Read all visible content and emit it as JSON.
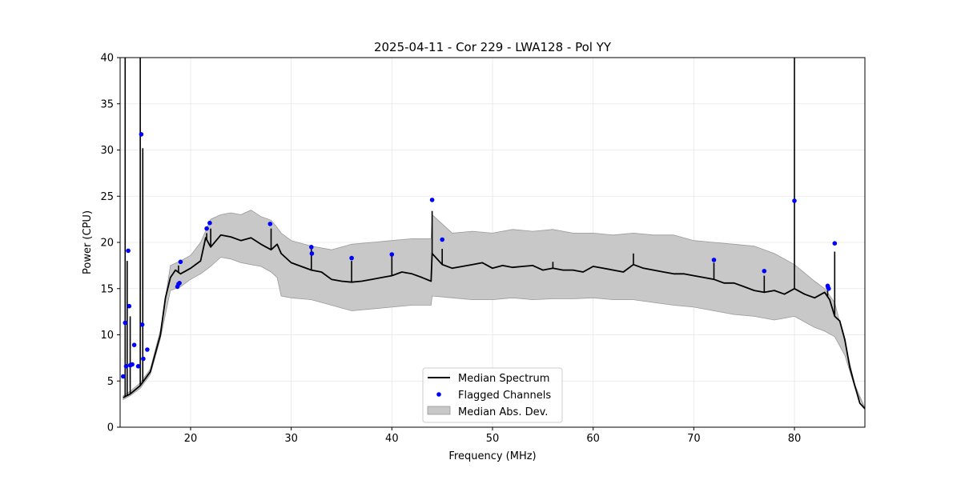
{
  "chart_data": {
    "type": "line",
    "title": "2025-04-11 - Cor 229 - LWA128 - Pol YY",
    "xlabel": "Frequency (MHz)",
    "ylabel": "Power (CPU)",
    "xlim": [
      13.0,
      87.0
    ],
    "ylim": [
      0,
      40
    ],
    "x_ticks": [
      20,
      30,
      40,
      50,
      60,
      70,
      80
    ],
    "y_ticks": [
      0,
      5,
      10,
      15,
      20,
      25,
      30,
      35,
      40
    ],
    "x_tick_labels": [
      "20",
      "30",
      "40",
      "50",
      "60",
      "70",
      "80"
    ],
    "y_tick_labels": [
      "0",
      "5",
      "10",
      "15",
      "20",
      "25",
      "30",
      "35",
      "40"
    ],
    "grid": true,
    "legend_position": "bottom-center",
    "legend": [
      "Median Spectrum",
      "Flagged Channels",
      "Median Abs. Dev."
    ],
    "colors": {
      "median": "#000000",
      "flagged": "#0000ff",
      "mad_fill": "#c8c8c8",
      "mad_edge": "#999999"
    },
    "series": [
      {
        "name": "Median Spectrum",
        "x": [
          13.3,
          14.0,
          15.0,
          16.0,
          17.0,
          17.5,
          18.0,
          18.5,
          19.0,
          20.0,
          21.0,
          21.5,
          22.0,
          23.0,
          24.0,
          25.0,
          26.0,
          27.0,
          28.0,
          28.6,
          29.0,
          30.0,
          31.0,
          32.0,
          33.0,
          34.0,
          35.0,
          36.0,
          37.0,
          38.0,
          39.0,
          40.0,
          41.0,
          42.0,
          43.0,
          43.9,
          44.0,
          45.0,
          46.0,
          47.0,
          48.0,
          49.0,
          50.0,
          51.0,
          52.0,
          53.0,
          54.0,
          55.0,
          56.0,
          57.0,
          58.0,
          59.0,
          60.0,
          61.0,
          62.0,
          63.0,
          64.0,
          65.0,
          66.0,
          67.0,
          68.0,
          69.0,
          70.0,
          71.0,
          72.0,
          73.0,
          74.0,
          75.0,
          76.0,
          77.0,
          78.0,
          79.0,
          80.0,
          81.0,
          82.0,
          83.0,
          83.5,
          84.0,
          84.5,
          85.0,
          85.5,
          86.0,
          86.5,
          87.0
        ],
        "y": [
          3.2,
          3.6,
          4.5,
          6.0,
          10.0,
          14.0,
          16.2,
          17.0,
          16.6,
          17.2,
          18.0,
          20.5,
          19.5,
          20.8,
          20.6,
          20.2,
          20.5,
          19.8,
          19.2,
          19.8,
          18.8,
          17.8,
          17.4,
          17.0,
          16.8,
          16.0,
          15.8,
          15.7,
          15.8,
          16.0,
          16.2,
          16.4,
          16.8,
          16.6,
          16.2,
          15.8,
          18.8,
          17.6,
          17.2,
          17.4,
          17.6,
          17.8,
          17.2,
          17.5,
          17.3,
          17.4,
          17.5,
          17.0,
          17.2,
          17.0,
          17.0,
          16.8,
          17.4,
          17.2,
          17.0,
          16.8,
          17.6,
          17.2,
          17.0,
          16.8,
          16.6,
          16.6,
          16.4,
          16.2,
          16.0,
          15.6,
          15.6,
          15.2,
          14.8,
          14.6,
          14.8,
          14.4,
          15.0,
          14.4,
          14.0,
          14.6,
          13.8,
          12.0,
          11.5,
          9.5,
          6.5,
          4.5,
          2.6,
          2.0
        ]
      },
      {
        "name": "Median Abs. Dev. (upper)",
        "x": [
          13.3,
          14.0,
          15.0,
          16.0,
          17.0,
          18.0,
          19.0,
          20.0,
          21.0,
          22.0,
          23.0,
          24.0,
          25.0,
          26.0,
          27.0,
          28.0,
          28.6,
          29.0,
          30.0,
          32.0,
          34.0,
          36.0,
          38.0,
          40.0,
          42.0,
          43.9,
          44.0,
          46.0,
          48.0,
          50.0,
          52.0,
          54.0,
          56.0,
          58.0,
          60.0,
          62.0,
          64.0,
          66.0,
          68.0,
          70.0,
          72.0,
          74.0,
          76.0,
          78.0,
          80.0,
          82.0,
          83.0,
          84.0,
          85.0,
          86.0,
          87.0
        ],
        "y": [
          3.4,
          3.9,
          4.8,
          6.3,
          10.5,
          17.5,
          18.0,
          18.6,
          20.0,
          22.5,
          23.0,
          23.2,
          23.0,
          23.5,
          22.8,
          22.4,
          21.6,
          21.0,
          20.2,
          19.6,
          19.2,
          19.8,
          20.0,
          20.2,
          20.4,
          20.4,
          23.0,
          21.0,
          21.2,
          21.0,
          21.4,
          21.2,
          21.4,
          21.0,
          21.0,
          20.8,
          21.0,
          20.8,
          20.8,
          20.2,
          20.0,
          19.8,
          19.6,
          18.8,
          17.6,
          15.8,
          15.0,
          13.5,
          9.2,
          4.6,
          2.1
        ]
      },
      {
        "name": "Median Abs. Dev. (lower)",
        "x": [
          13.3,
          14.0,
          15.0,
          16.0,
          17.0,
          18.0,
          19.0,
          20.0,
          21.0,
          22.0,
          23.0,
          24.0,
          25.0,
          26.0,
          27.0,
          28.0,
          28.6,
          29.0,
          30.0,
          32.0,
          34.0,
          36.0,
          38.0,
          40.0,
          42.0,
          43.9,
          44.0,
          46.0,
          48.0,
          50.0,
          52.0,
          54.0,
          56.0,
          58.0,
          60.0,
          62.0,
          64.0,
          66.0,
          68.0,
          70.0,
          72.0,
          74.0,
          76.0,
          78.0,
          80.0,
          82.0,
          83.0,
          84.0,
          85.0,
          86.0,
          87.0
        ],
        "y": [
          3.0,
          3.4,
          4.2,
          5.7,
          9.6,
          14.8,
          15.2,
          16.0,
          16.6,
          17.4,
          18.4,
          18.2,
          17.8,
          17.6,
          17.4,
          16.8,
          16.2,
          14.2,
          14.0,
          13.8,
          13.2,
          12.6,
          12.8,
          13.0,
          13.2,
          13.2,
          14.2,
          14.0,
          13.8,
          13.8,
          14.0,
          13.8,
          13.9,
          13.9,
          14.0,
          13.8,
          13.8,
          13.5,
          13.2,
          13.0,
          12.6,
          12.2,
          12.0,
          11.6,
          12.0,
          10.8,
          10.4,
          9.8,
          7.8,
          4.3,
          1.9
        ]
      },
      {
        "name": "Spikes",
        "x": [
          13.5,
          13.7,
          14.0,
          15.0,
          15.25,
          18.8,
          21.6,
          22.0,
          28.0,
          32.0,
          36.0,
          40.0,
          44.0,
          45.0,
          56.0,
          64.0,
          72.0,
          77.0,
          80.0,
          83.3,
          84.0
        ],
        "y": [
          40.0,
          18.0,
          12.0,
          40.0,
          30.2,
          17.5,
          21.0,
          21.5,
          21.5,
          19.5,
          18.0,
          18.5,
          23.4,
          19.3,
          17.9,
          18.8,
          17.8,
          16.4,
          40.0,
          15.0,
          19.0
        ]
      },
      {
        "name": "Flagged Channels",
        "x": [
          13.3,
          13.5,
          13.6,
          13.8,
          13.9,
          14.0,
          14.2,
          14.4,
          14.8,
          15.1,
          15.2,
          15.3,
          15.7,
          18.7,
          18.8,
          18.9,
          19.0,
          21.6,
          21.9,
          27.9,
          32.0,
          32.05,
          36.0,
          40.0,
          44.0,
          45.0,
          72.0,
          77.0,
          80.0,
          83.3,
          83.35,
          83.4,
          84.0
        ],
        "y": [
          5.5,
          11.3,
          6.6,
          19.1,
          13.1,
          6.7,
          6.8,
          8.9,
          6.6,
          31.7,
          11.1,
          7.4,
          8.4,
          15.2,
          15.5,
          15.6,
          17.9,
          21.5,
          22.1,
          22.0,
          19.5,
          18.8,
          18.3,
          18.7,
          24.6,
          20.3,
          18.1,
          16.9,
          24.5,
          15.3,
          15.1,
          15.0,
          19.9
        ]
      }
    ]
  }
}
